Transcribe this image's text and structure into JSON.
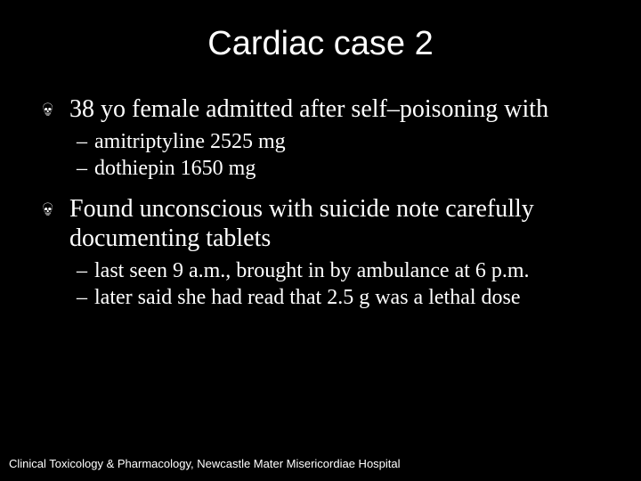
{
  "title": "Cardiac case 2",
  "bullets": {
    "b1": "38 yo female admitted after self–poisoning with",
    "b1_sub1": "amitriptyline  2525 mg",
    "b1_sub2": "dothiepin 1650 mg",
    "b2": "Found unconscious with suicide note carefully documenting tablets",
    "b2_sub1": "last seen 9 a.m., brought in by ambulance at 6 p.m.",
    "b2_sub2": "later said she had read that 2.5 g was a lethal dose"
  },
  "footer": "Clinical Toxicology & Pharmacology, Newcastle Mater Misericordiae Hospital",
  "colors": {
    "background": "#000000",
    "text": "#ffffff"
  },
  "fonts": {
    "title_family": "Arial",
    "title_size_pt": 38,
    "body_family": "Times New Roman",
    "l1_size_pt": 28,
    "l2_size_pt": 24,
    "footer_family": "Arial",
    "footer_size_pt": 13
  }
}
